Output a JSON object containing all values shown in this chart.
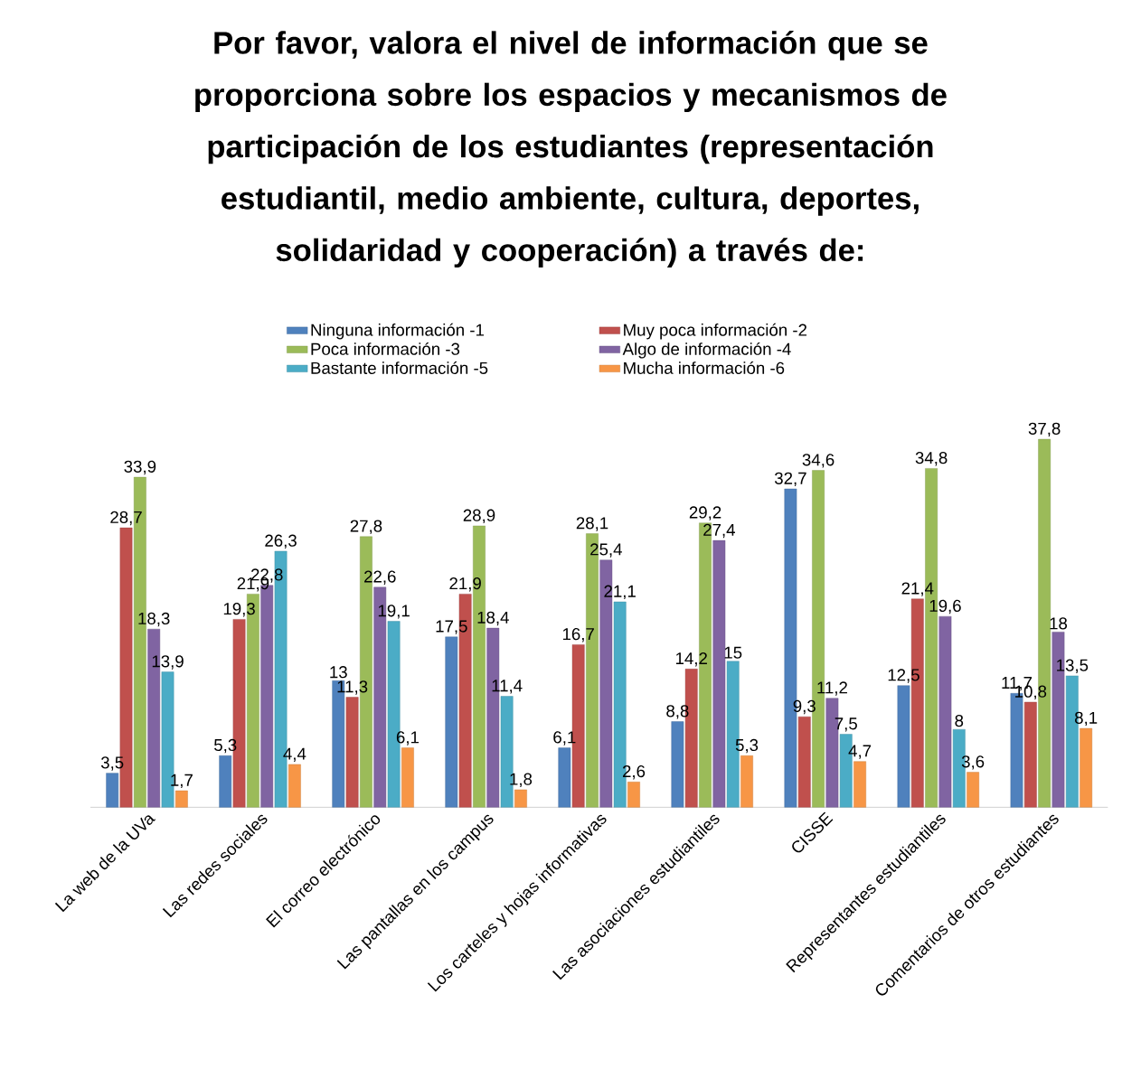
{
  "chart_data": {
    "type": "bar",
    "title": "Por favor, valora el nivel de información que se proporciona sobre los espacios y mecanismos de participación de los estudiantes (representación estudiantil, medio ambiente, cultura, deportes, solidaridad y cooperación) a través de:",
    "categories": [
      "La web de la UVa",
      "Las redes sociales",
      "El correo electrónico",
      "Las pantallas en los campus",
      "Los carteles y hojas informativas",
      "Las asociaciones estudiantiles",
      "CISSE",
      "Representantes estudiantiles",
      "Comentarios de otros estudiantes"
    ],
    "series": [
      {
        "name": "Ninguna información -1",
        "color": "#4f81bd",
        "values": [
          3.5,
          5.3,
          13,
          17.5,
          6.1,
          8.8,
          32.7,
          12.5,
          11.7
        ],
        "value_labels": [
          "3,5",
          "5,3",
          "13",
          "17,5",
          "6,1",
          "8,8",
          "32,7",
          "12,5",
          "11,7"
        ]
      },
      {
        "name": "Muy poca información -2",
        "color": "#c0504d",
        "values": [
          28.7,
          19.3,
          11.3,
          21.9,
          16.7,
          14.2,
          9.3,
          21.4,
          10.8
        ],
        "value_labels": [
          "28,7",
          "19,3",
          "11,3",
          "21,9",
          "16,7",
          "14,2",
          "9,3",
          "21,4",
          "10,8"
        ]
      },
      {
        "name": "Poca información -3",
        "color": "#9bbb59",
        "values": [
          33.9,
          21.9,
          27.8,
          28.9,
          28.1,
          29.2,
          34.6,
          34.8,
          37.8
        ],
        "value_labels": [
          "33,9",
          "21,9",
          "27,8",
          "28,9",
          "28,1",
          "29,2",
          "34,6",
          "34,8",
          "37,8"
        ]
      },
      {
        "name": "Algo de información -4",
        "color": "#8064a2",
        "values": [
          18.3,
          22.8,
          22.6,
          18.4,
          25.4,
          27.4,
          11.2,
          19.6,
          18
        ],
        "value_labels": [
          "18,3",
          "22,8",
          "22,6",
          "18,4",
          "25,4",
          "27,4",
          "11,2",
          "19,6",
          "18"
        ]
      },
      {
        "name": "Bastante información -5",
        "color": "#4bacc6",
        "values": [
          13.9,
          26.3,
          19.1,
          11.4,
          21.1,
          15,
          7.5,
          8,
          13.5
        ],
        "value_labels": [
          "13,9",
          "26,3",
          "19,1",
          "11,4",
          "21,1",
          "15",
          "7,5",
          "8",
          "13,5"
        ]
      },
      {
        "name": "Mucha información -6",
        "color": "#f79646",
        "values": [
          1.7,
          4.4,
          6.1,
          1.8,
          2.6,
          5.3,
          4.7,
          3.6,
          8.1
        ],
        "value_labels": [
          "1,7",
          "4,4",
          "6,1",
          "1,8",
          "2,6",
          "5,3",
          "4,7",
          "3,6",
          "8,1"
        ]
      }
    ],
    "legend": "top"
  }
}
